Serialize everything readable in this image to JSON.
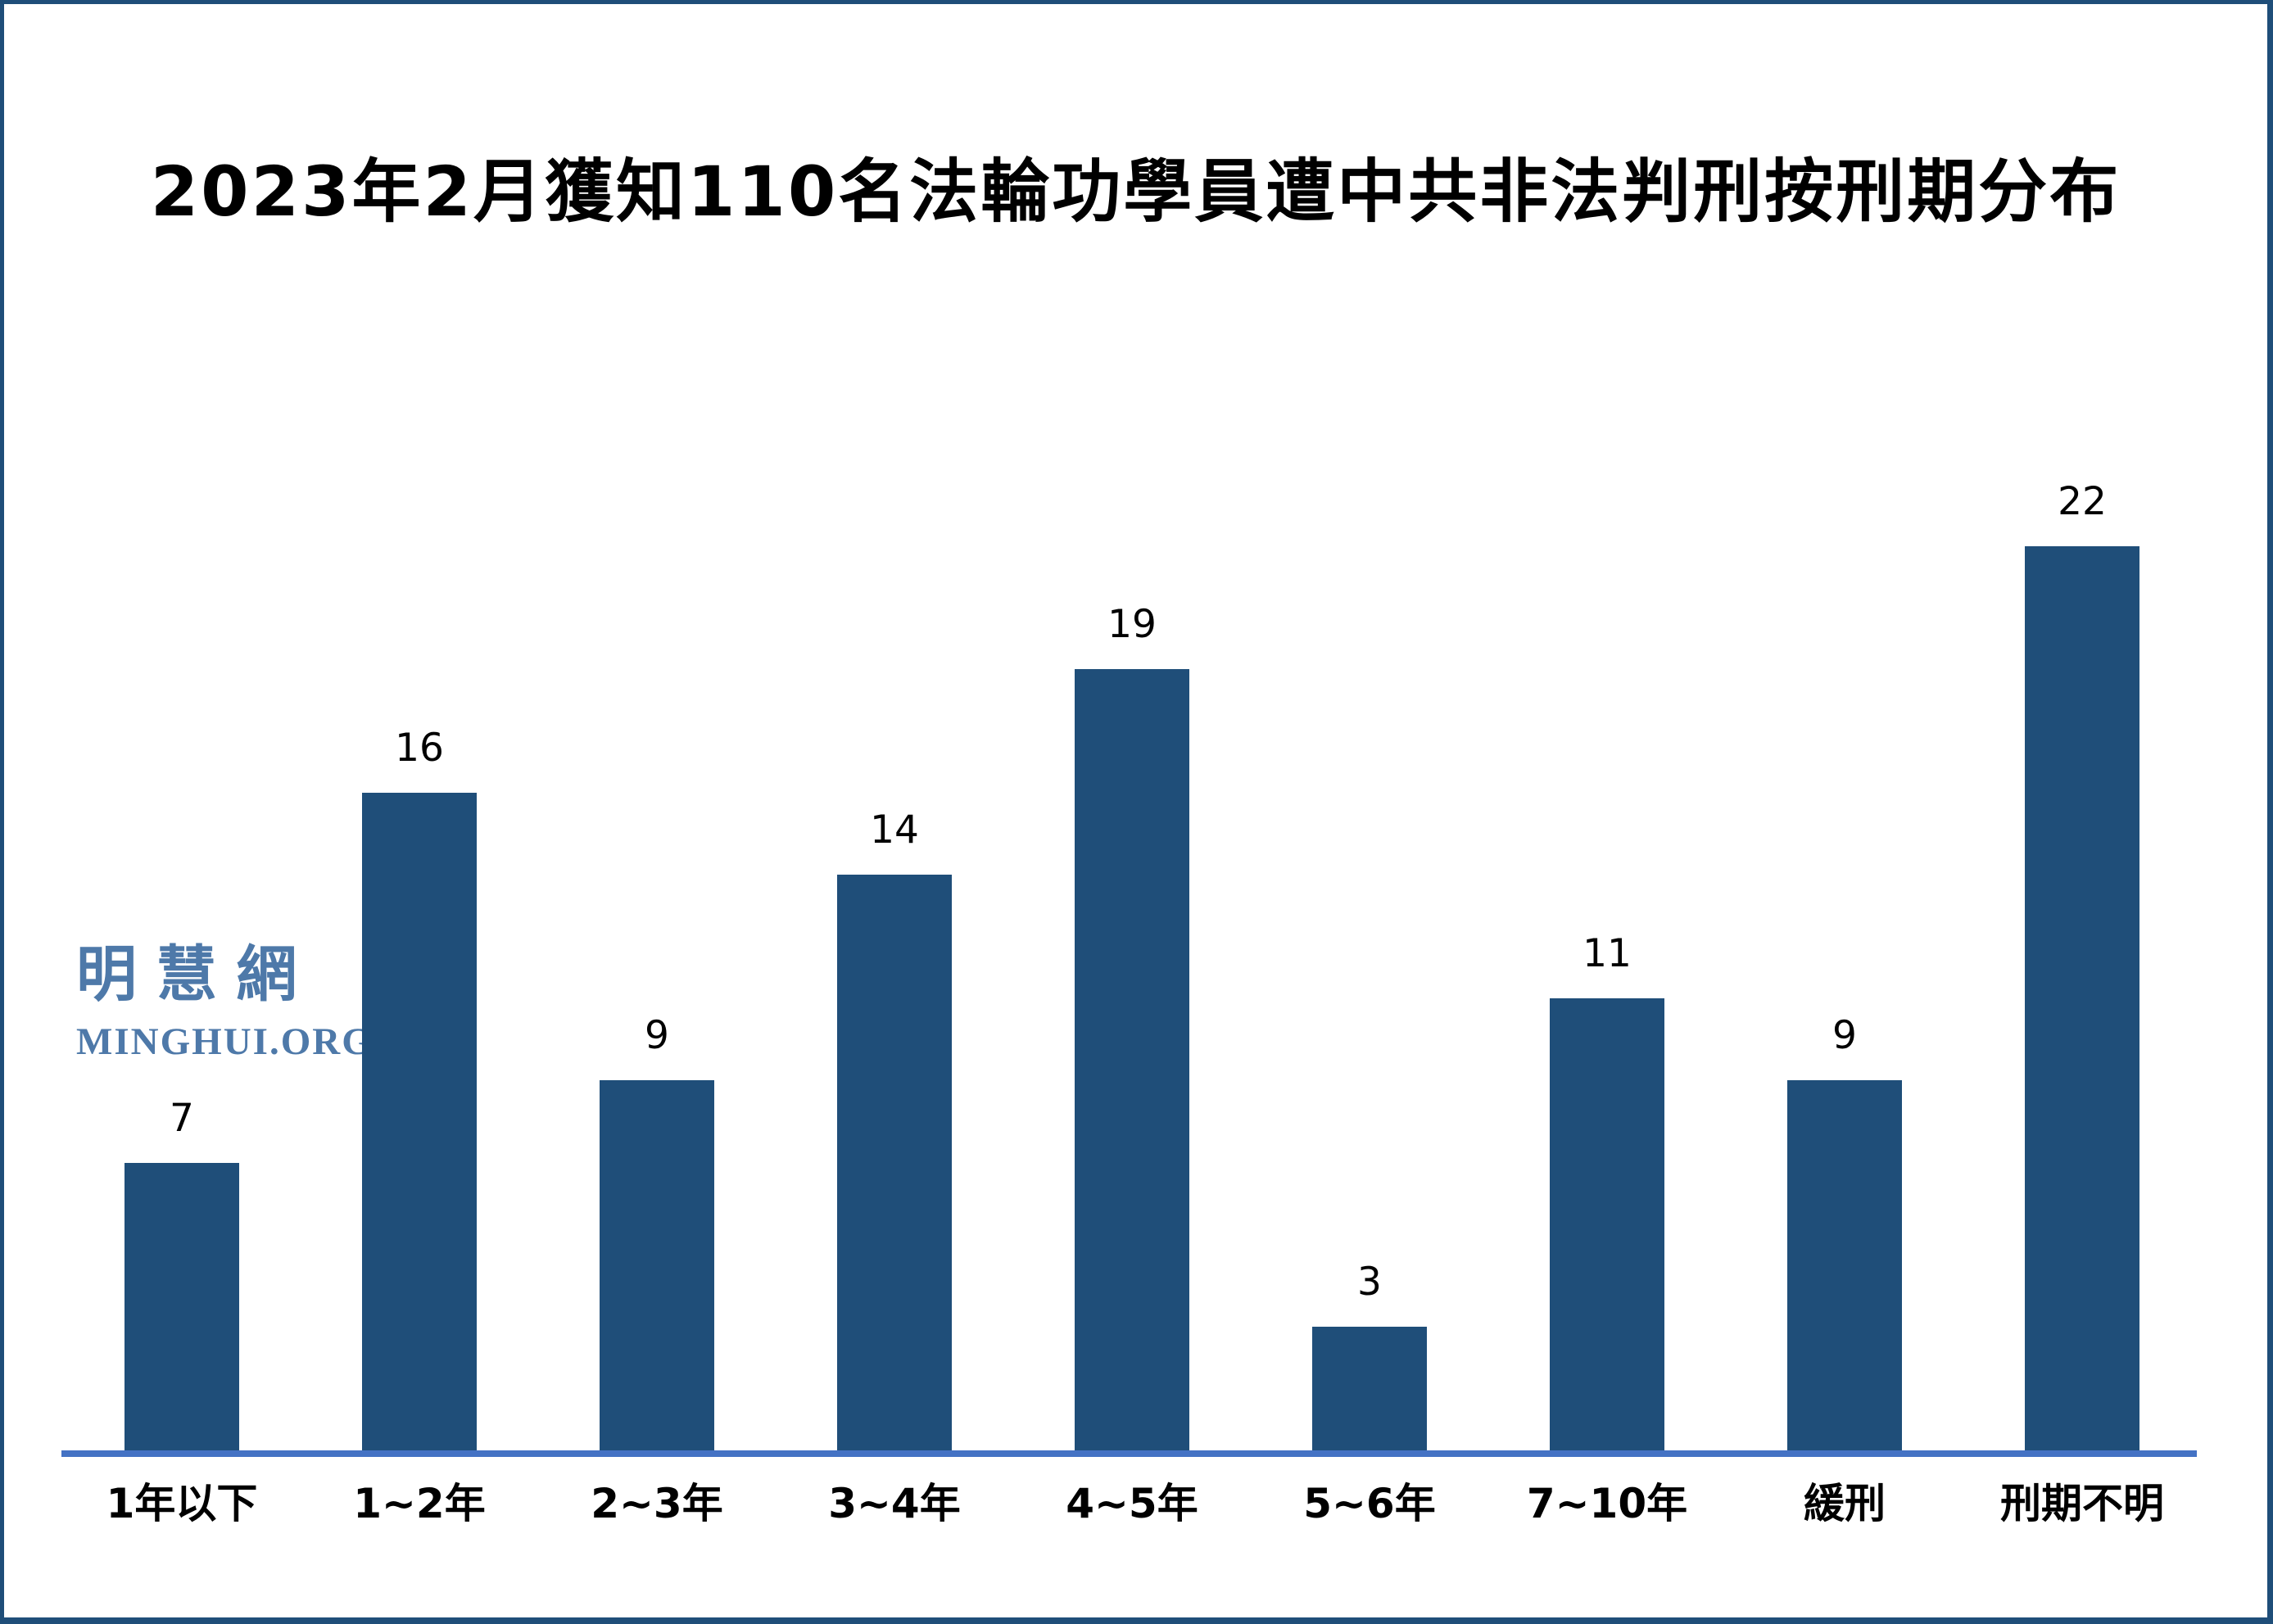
{
  "frame": {
    "border_color": "#1F4E79",
    "background_color": "#FFFFFF"
  },
  "title": {
    "text": "2023年2月獲知110名法輪功學員遭中共非法判刑按刑期分布",
    "color": "#000000"
  },
  "watermark": {
    "cjk": "明慧網",
    "latin": "MINGHUI.ORG",
    "color": "#4E79A9"
  },
  "chart_data": {
    "type": "bar",
    "title": "2023年2月獲知110名法輪功學員遭中共非法判刑按刑期分布",
    "categories": [
      "1年以下",
      "1~2年",
      "2~3年",
      "3~4年",
      "4~5年",
      "5~6年",
      "7~10年",
      "緩刑",
      "刑期不明"
    ],
    "values": [
      7,
      16,
      9,
      14,
      19,
      3,
      11,
      9,
      22
    ],
    "xlabel": "",
    "ylabel": "",
    "ylim": [
      0,
      23
    ],
    "grid": false,
    "legend_position": "none",
    "y_axis_visible": false,
    "bar_color": "#1F4E79",
    "axis_line_color": "#4472C4",
    "value_label_color": "#000000",
    "category_label_color": "#000000"
  }
}
